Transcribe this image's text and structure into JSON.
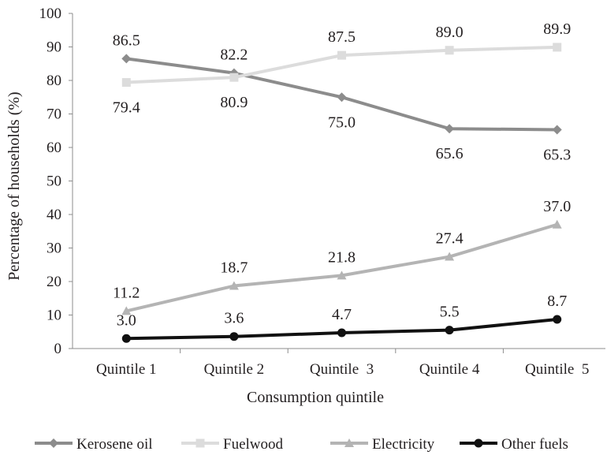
{
  "chart_data": {
    "type": "line",
    "title": "",
    "xlabel": "Consumption quintile",
    "ylabel": "Percentage of households (%)",
    "ylim": [
      0,
      100
    ],
    "yticks": [
      0,
      10,
      20,
      30,
      40,
      50,
      60,
      70,
      80,
      90,
      100
    ],
    "categories": [
      "Quintile 1",
      "Quintile 2",
      "Quintile  3",
      "Quintile 4",
      "Quintile  5"
    ],
    "grid": false,
    "legend_position": "bottom",
    "series": [
      {
        "name": "Kerosene oil",
        "values": [
          86.5,
          82.2,
          75.0,
          65.6,
          65.3
        ],
        "labels": [
          "86.5",
          "82.2",
          "75.0",
          "65.6",
          "65.3"
        ],
        "color": "#8c8c8c",
        "marker": "diamond",
        "label_position": [
          "above",
          "above",
          "below",
          "below",
          "below"
        ]
      },
      {
        "name": "Fuelwood",
        "values": [
          79.4,
          80.9,
          87.5,
          89.0,
          89.9
        ],
        "labels": [
          "79.4",
          "80.9",
          "87.5",
          "89.0",
          "89.9"
        ],
        "color": "#dcdcdc",
        "marker": "square",
        "label_position": [
          "below",
          "below",
          "above",
          "above",
          "above"
        ]
      },
      {
        "name": "Electricity",
        "values": [
          11.2,
          18.7,
          21.8,
          27.4,
          37.0
        ],
        "labels": [
          "11.2",
          "18.7",
          "21.8",
          "27.4",
          "37.0"
        ],
        "color": "#b4b4b4",
        "marker": "triangle",
        "label_position": [
          "above",
          "above",
          "above",
          "above",
          "above"
        ]
      },
      {
        "name": "Other fuels",
        "values": [
          3.0,
          3.6,
          4.7,
          5.5,
          8.7
        ],
        "labels": [
          "3.0",
          "3.6",
          "4.7",
          "5.5",
          "8.7"
        ],
        "color": "#111111",
        "marker": "circle",
        "label_position": [
          "above",
          "above",
          "above",
          "above",
          "above"
        ]
      }
    ]
  }
}
